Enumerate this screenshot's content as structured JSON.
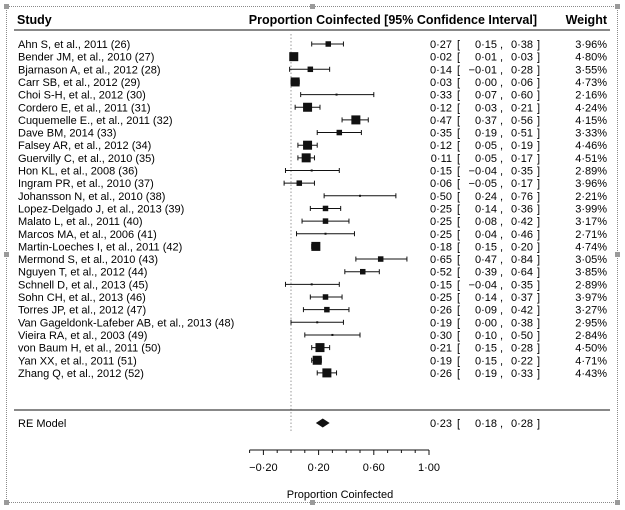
{
  "chart_data": {
    "type": "forest",
    "headers": {
      "study": "Study",
      "estimate": "Proportion Coinfected [95% Confidence Interval]",
      "weight": "Weight"
    },
    "studies": [
      {
        "label": "Ahn S, et al., 2011 (26)",
        "est": 0.27,
        "lo": 0.15,
        "hi": 0.38,
        "est_text": "0·27",
        "lo_text": "0·15",
        "hi_text": "0·38",
        "weight": "3·96%"
      },
      {
        "label": "Bender JM, et al., 2010 (27)",
        "est": 0.02,
        "lo": 0.01,
        "hi": 0.03,
        "est_text": "0·02",
        "lo_text": "0·01",
        "hi_text": "0·03",
        "weight": "4·80%"
      },
      {
        "label": "Bjarnason A, et al., 2012 (28)",
        "est": 0.14,
        "lo": -0.01,
        "hi": 0.28,
        "est_text": "0·14",
        "lo_text": "−0·01",
        "hi_text": "0·28",
        "weight": "3·55%"
      },
      {
        "label": "Carr SB, et al., 2012 (29)",
        "est": 0.03,
        "lo": 0.0,
        "hi": 0.06,
        "est_text": "0·03",
        "lo_text": "0·00",
        "hi_text": "0·06",
        "weight": "4·73%"
      },
      {
        "label": "Choi S-H, et al., 2012 (30)",
        "est": 0.33,
        "lo": 0.07,
        "hi": 0.6,
        "est_text": "0·33",
        "lo_text": "0·07",
        "hi_text": "0·60",
        "weight": "2·16%"
      },
      {
        "label": "Cordero E, et al., 2011 (31)",
        "est": 0.12,
        "lo": 0.03,
        "hi": 0.21,
        "est_text": "0·12",
        "lo_text": "0·03",
        "hi_text": "0·21",
        "weight": "4·24%"
      },
      {
        "label": "Cuquemelle E., et al., 2011 (32)",
        "est": 0.47,
        "lo": 0.37,
        "hi": 0.56,
        "est_text": "0·47",
        "lo_text": "0·37",
        "hi_text": "0·56",
        "weight": "4·15%"
      },
      {
        "label": "Dave BM, 2014 (33)",
        "est": 0.35,
        "lo": 0.19,
        "hi": 0.51,
        "est_text": "0·35",
        "lo_text": "0·19",
        "hi_text": "0·51",
        "weight": "3·33%"
      },
      {
        "label": "Falsey AR, et al., 2012 (34)",
        "est": 0.12,
        "lo": 0.05,
        "hi": 0.19,
        "est_text": "0·12",
        "lo_text": "0·05",
        "hi_text": "0·19",
        "weight": "4·46%"
      },
      {
        "label": "Guervilly C, et al., 2010 (35)",
        "est": 0.11,
        "lo": 0.05,
        "hi": 0.17,
        "est_text": "0·11",
        "lo_text": "0·05",
        "hi_text": "0·17",
        "weight": "4·51%"
      },
      {
        "label": "Hon KL, et al., 2008 (36)",
        "est": 0.15,
        "lo": -0.04,
        "hi": 0.35,
        "est_text": "0·15",
        "lo_text": "−0·04",
        "hi_text": "0·35",
        "weight": "2·89%"
      },
      {
        "label": "Ingram PR, et al., 2010 (37)",
        "est": 0.06,
        "lo": -0.05,
        "hi": 0.17,
        "est_text": "0·06",
        "lo_text": "−0·05",
        "hi_text": "0·17",
        "weight": "3·96%"
      },
      {
        "label": "Johansson N, et al., 2010 (38)",
        "est": 0.5,
        "lo": 0.24,
        "hi": 0.76,
        "est_text": "0·50",
        "lo_text": "0·24",
        "hi_text": "0·76",
        "weight": "2·21%"
      },
      {
        "label": "Lopez-Delgado J, et al., 2013 (39)",
        "est": 0.25,
        "lo": 0.14,
        "hi": 0.36,
        "est_text": "0·25",
        "lo_text": "0·14",
        "hi_text": "0·36",
        "weight": "3·99%"
      },
      {
        "label": "Malato L, et al., 2011 (40)",
        "est": 0.25,
        "lo": 0.08,
        "hi": 0.42,
        "est_text": "0·25",
        "lo_text": "0·08",
        "hi_text": "0·42",
        "weight": "3·17%"
      },
      {
        "label": "Marcos MA, et al., 2006 (41)",
        "est": 0.25,
        "lo": 0.04,
        "hi": 0.46,
        "est_text": "0·25",
        "lo_text": "0·04",
        "hi_text": "0·46",
        "weight": "2·71%"
      },
      {
        "label": "Martin-Loeches I, et al., 2011 (42)",
        "est": 0.18,
        "lo": 0.15,
        "hi": 0.2,
        "est_text": "0·18",
        "lo_text": "0·15",
        "hi_text": "0·20",
        "weight": "4·74%"
      },
      {
        "label": "Mermond S, et al., 2010 (43)",
        "est": 0.65,
        "lo": 0.47,
        "hi": 0.84,
        "est_text": "0·65",
        "lo_text": "0·47",
        "hi_text": "0·84",
        "weight": "3·05%"
      },
      {
        "label": "Nguyen T, et al., 2012 (44)",
        "est": 0.52,
        "lo": 0.39,
        "hi": 0.64,
        "est_text": "0·52",
        "lo_text": "0·39",
        "hi_text": "0·64",
        "weight": "3·85%"
      },
      {
        "label": "Schnell D, et al., 2013 (45)",
        "est": 0.15,
        "lo": -0.04,
        "hi": 0.35,
        "est_text": "0·15",
        "lo_text": "−0·04",
        "hi_text": "0·35",
        "weight": "2·89%"
      },
      {
        "label": "Sohn CH, et al., 2013 (46)",
        "est": 0.25,
        "lo": 0.14,
        "hi": 0.37,
        "est_text": "0·25",
        "lo_text": "0·14",
        "hi_text": "0·37",
        "weight": "3·97%"
      },
      {
        "label": "Torres JP, et al., 2012 (47)",
        "est": 0.26,
        "lo": 0.09,
        "hi": 0.42,
        "est_text": "0·26",
        "lo_text": "0·09",
        "hi_text": "0·42",
        "weight": "3·27%"
      },
      {
        "label": "Van Gageldonk-Lafeber AB, et al., 2013 (48)",
        "est": 0.19,
        "lo": 0.0,
        "hi": 0.38,
        "est_text": "0·19",
        "lo_text": "0·00",
        "hi_text": "0·38",
        "weight": "2·95%"
      },
      {
        "label": "Vieira RA, et al., 2003 (49)",
        "est": 0.3,
        "lo": 0.1,
        "hi": 0.5,
        "est_text": "0·30",
        "lo_text": "0·10",
        "hi_text": "0·50",
        "weight": "2·84%"
      },
      {
        "label": "von Baum H, et al., 2011 (50)",
        "est": 0.21,
        "lo": 0.15,
        "hi": 0.28,
        "est_text": "0·21",
        "lo_text": "0·15",
        "hi_text": "0·28",
        "weight": "4·50%"
      },
      {
        "label": "Yan XX, et al., 2011 (51)",
        "est": 0.19,
        "lo": 0.15,
        "hi": 0.22,
        "est_text": "0·19",
        "lo_text": "0·15",
        "hi_text": "0·22",
        "weight": "4·71%"
      },
      {
        "label": "Zhang Q, et al., 2012 (52)",
        "est": 0.26,
        "lo": 0.19,
        "hi": 0.33,
        "est_text": "0·26",
        "lo_text": "0·19",
        "hi_text": "0·33",
        "weight": "4·43%"
      }
    ],
    "summary": {
      "label": "RE Model",
      "est": 0.23,
      "lo": 0.18,
      "hi": 0.28,
      "est_text": "0·23",
      "lo_text": "0·18",
      "hi_text": "0·28"
    },
    "xaxis": {
      "label": "Proportion Coinfected",
      "ticks": [
        -0.2,
        0.2,
        0.6,
        1.0
      ],
      "tick_labels": [
        "−0·20",
        "0·20",
        "0·60",
        "1·00"
      ],
      "range": [
        -0.3,
        1.0
      ],
      "reference_line": 0
    },
    "colors": {
      "ink": "#111111",
      "frame": "#8a8a8a",
      "reference_line": "#999999"
    }
  }
}
